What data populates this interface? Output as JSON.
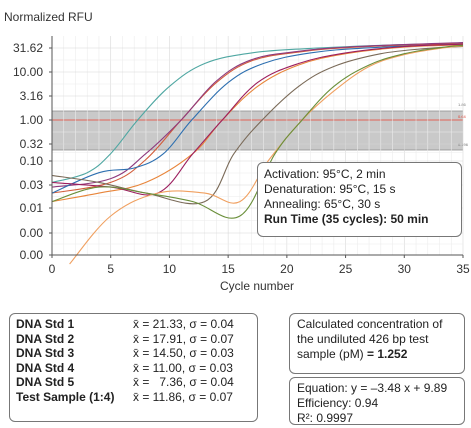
{
  "chart_data": {
    "type": "line",
    "ylabel": "Normalized RFU",
    "xlabel": "Cycle number",
    "yscale": "log-like (labeled ticks)",
    "y_ticks": [
      "31.62",
      "10.00",
      "3.16",
      "1.00",
      "0.32",
      "0.10",
      "0.03",
      "0.01",
      "0.00",
      "0.00"
    ],
    "x_ticks": [
      0,
      5,
      10,
      15,
      20,
      25,
      30,
      35
    ],
    "xlim": [
      0,
      35
    ],
    "threshold_band": {
      "lower": "0.32",
      "upper": "1.00",
      "threshold": "1.00"
    },
    "right_tick_labels": [
      "1.86",
      "0.64",
      "0.196"
    ],
    "series": [
      {
        "color": "#4fa7a2",
        "ct": 7.3,
        "values": [
          [
            0,
            0.05
          ],
          [
            3,
            0.08
          ],
          [
            5,
            0.2
          ],
          [
            7.3,
            1.0
          ],
          [
            10,
            5.0
          ],
          [
            13,
            15
          ],
          [
            17,
            25
          ],
          [
            22,
            31
          ],
          [
            28,
            36
          ],
          [
            35,
            40
          ]
        ]
      },
      {
        "color": "#d25c3a",
        "ct": 11.0,
        "values": [
          [
            0,
            0.03
          ],
          [
            5,
            0.05
          ],
          [
            8,
            0.15
          ],
          [
            11,
            1.0
          ],
          [
            14,
            6.0
          ],
          [
            17,
            17
          ],
          [
            21,
            26
          ],
          [
            26,
            33
          ],
          [
            35,
            40
          ]
        ]
      },
      {
        "color": "#8e3a7d",
        "ct": 11.0,
        "values": [
          [
            0,
            0.04
          ],
          [
            5,
            0.06
          ],
          [
            8,
            0.2
          ],
          [
            11,
            1.0
          ],
          [
            14,
            6.5
          ],
          [
            17,
            18
          ],
          [
            21,
            27
          ],
          [
            26,
            34
          ],
          [
            35,
            41
          ]
        ]
      },
      {
        "color": "#2d6fb0",
        "ct": 11.9,
        "values": [
          [
            0,
            0.03
          ],
          [
            4,
            0.08
          ],
          [
            7,
            0.1
          ],
          [
            9.5,
            0.2
          ],
          [
            11.9,
            1.0
          ],
          [
            15,
            6.0
          ],
          [
            18,
            15
          ],
          [
            22,
            25
          ],
          [
            27,
            32
          ],
          [
            35,
            38
          ]
        ]
      },
      {
        "color": "#e8853a",
        "ct": 14.5,
        "values": [
          [
            0,
            0.02
          ],
          [
            4,
            0.03
          ],
          [
            8,
            0.05
          ],
          [
            12,
            0.2
          ],
          [
            14.5,
            1.0
          ],
          [
            17.5,
            5.0
          ],
          [
            21,
            14
          ],
          [
            25,
            24
          ],
          [
            30,
            33
          ],
          [
            35,
            37
          ]
        ]
      },
      {
        "color": "#9c1e5e",
        "ct": 14.5,
        "values": [
          [
            0,
            0.05
          ],
          [
            5,
            0.04
          ],
          [
            9,
            0.03
          ],
          [
            12,
            0.2
          ],
          [
            14.5,
            1.0
          ],
          [
            17.5,
            6.0
          ],
          [
            21,
            15
          ],
          [
            25,
            25
          ],
          [
            30,
            34
          ],
          [
            35,
            38
          ]
        ]
      },
      {
        "color": "#7a6a58",
        "ct": 17.9,
        "values": [
          [
            0,
            0.07
          ],
          [
            4,
            0.05
          ],
          [
            8,
            0.03
          ],
          [
            13,
            0.02
          ],
          [
            15.5,
            0.2
          ],
          [
            17.9,
            1.0
          ],
          [
            21,
            5.0
          ],
          [
            24,
            13
          ],
          [
            28,
            24
          ],
          [
            32,
            31
          ],
          [
            35,
            34
          ]
        ]
      },
      {
        "color": "#f0a060",
        "ct": 21.3,
        "values": [
          [
            1.5,
            0.001
          ],
          [
            5,
            0.01
          ],
          [
            9,
            0.03
          ],
          [
            13,
            0.03
          ],
          [
            16,
            0.02
          ],
          [
            18.5,
            0.15
          ],
          [
            21.3,
            1.0
          ],
          [
            24,
            4.0
          ],
          [
            27,
            13
          ],
          [
            30,
            23
          ],
          [
            33,
            31
          ],
          [
            35,
            35
          ]
        ]
      },
      {
        "color": "#6a8f3a",
        "ct": 21.3,
        "values": [
          [
            0,
            0.02
          ],
          [
            4,
            0.04
          ],
          [
            8,
            0.03
          ],
          [
            12,
            0.02
          ],
          [
            16,
            0.01
          ],
          [
            19,
            0.2
          ],
          [
            21.3,
            1.0
          ],
          [
            24,
            5.0
          ],
          [
            27,
            14
          ],
          [
            30,
            24
          ],
          [
            33,
            32
          ],
          [
            35,
            36
          ]
        ]
      }
    ]
  },
  "conditions": {
    "activation": "Activation: 95°C, 2 min",
    "denaturation": "Denaturation: 95°C, 15 s",
    "annealing": "Annealing: 65°C, 30 s",
    "run_time": "Run Time (35 cycles): 50 min"
  },
  "stats": [
    {
      "name": "DNA Std 1",
      "value": "x̄ = 21.33, σ = 0.04"
    },
    {
      "name": "DNA Std 2",
      "value": "x̄ = 17.91, σ = 0.07"
    },
    {
      "name": "DNA Std 3",
      "value": "x̄ = 14.50, σ = 0.03"
    },
    {
      "name": "DNA Std 4",
      "value": "x̄ = 11.00, σ = 0.03"
    },
    {
      "name": "DNA Std 5",
      "value": "x̄ =   7.36, σ = 0.04"
    },
    {
      "name": "Test Sample (1:4)",
      "value": "x̄ = 11.86, σ = 0.07"
    }
  ],
  "concentration": {
    "text": "Calculated concentration of the undiluted 426 bp test sample (pM)",
    "value": "= 1.252"
  },
  "equation": {
    "equation": "Equation: y = –3.48 x + 9.89",
    "efficiency": "Efficiency: 0.94",
    "r2": "R²: 0.9997"
  }
}
